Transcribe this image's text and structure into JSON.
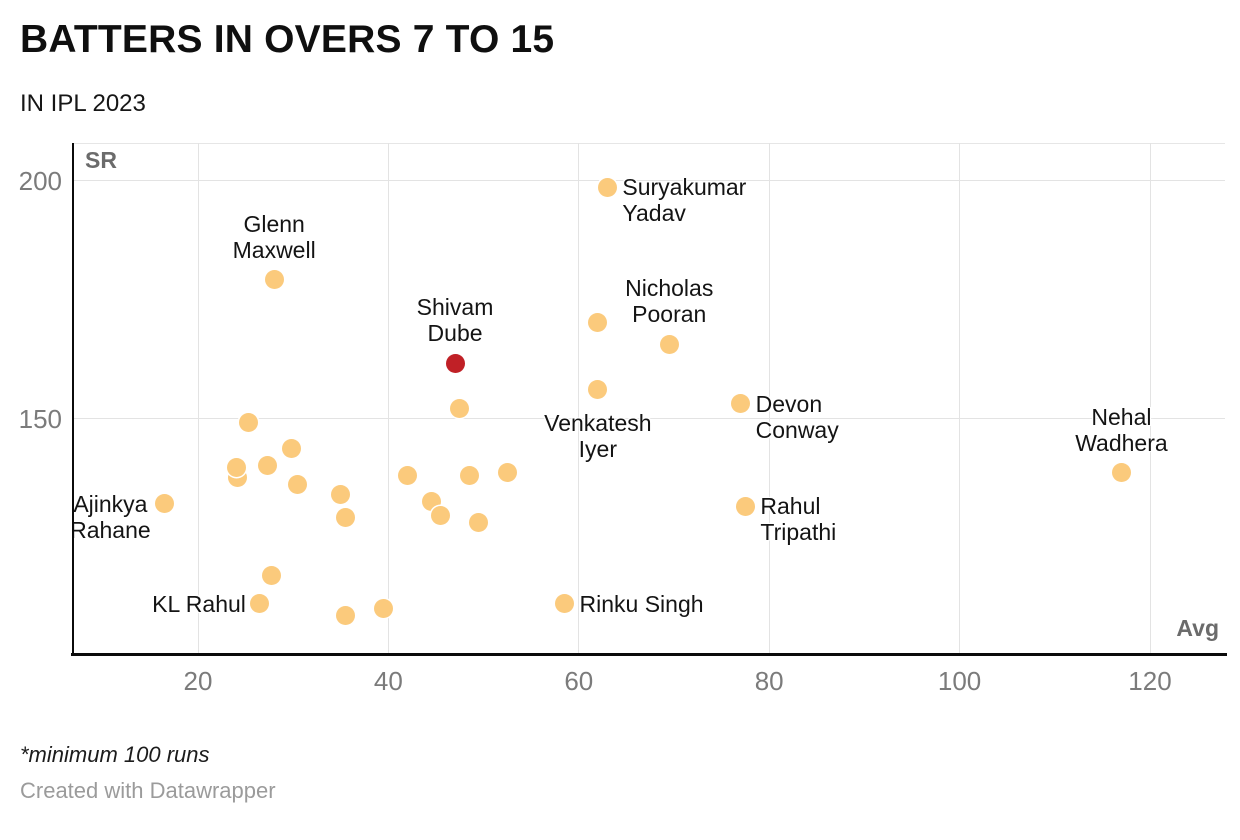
{
  "header": {
    "title": "BATTERS IN OVERS 7 TO 15",
    "subtitle": "IN IPL 2023"
  },
  "footer": {
    "note": "*minimum 100 runs",
    "credit": "Created with Datawrapper"
  },
  "chart_data": {
    "type": "scatter",
    "title": "BATTERS IN OVERS 7 TO 15",
    "subtitle": "IN IPL 2023",
    "x_axis": {
      "label": "Avg",
      "ticks": [
        20,
        40,
        60,
        80,
        100,
        120
      ],
      "range": [
        6.5,
        128
      ]
    },
    "y_axis": {
      "label": "SR",
      "ticks": [
        150,
        200
      ],
      "range": [
        100,
        207.8
      ]
    },
    "grid": true,
    "colors": {
      "default": "#FBCA7C",
      "highlight": "#C02026"
    },
    "points": [
      {
        "name": "Suryakumar Yadav",
        "avg": 63,
        "sr": 198.5,
        "label_lines": [
          "Suryakumar",
          "Yadav"
        ],
        "label_align": "right"
      },
      {
        "name": "Glenn Maxwell",
        "avg": 28,
        "sr": 179,
        "label_lines": [
          "Glenn",
          "Maxwell"
        ],
        "label_align": "above"
      },
      {
        "name": "Shivam Dube",
        "avg": 47,
        "sr": 161.5,
        "highlight": true,
        "label_lines": [
          "Shivam",
          "Dube"
        ],
        "label_align": "above"
      },
      {
        "name": "Nicholas Pooran",
        "avg": 69.5,
        "sr": 165.5,
        "label_lines": [
          "Nicholas",
          "Pooran"
        ],
        "label_align": "above"
      },
      {
        "name": "Venkatesh Iyer",
        "avg": 62,
        "sr": 156,
        "label_lines": [
          "Venkatesh",
          "Iyer"
        ],
        "label_align": "below"
      },
      {
        "name": "Devon Conway",
        "avg": 77,
        "sr": 153,
        "label_lines": [
          "Devon",
          "Conway"
        ],
        "label_align": "right"
      },
      {
        "name": "Rahul Tripathi",
        "avg": 77.5,
        "sr": 131.5,
        "label_lines": [
          "Rahul",
          "Tripathi"
        ],
        "label_align": "right"
      },
      {
        "name": "Nehal Wadhera",
        "avg": 117,
        "sr": 138.5,
        "label_lines": [
          "Nehal",
          "Wadhera"
        ],
        "label_align": "above"
      },
      {
        "name": "Ajinkya Rahane",
        "avg": 16.5,
        "sr": 132,
        "label_lines": [
          "Ajinkya",
          "Rahane"
        ],
        "label_align": "left"
      },
      {
        "name": "KL Rahul",
        "avg": 26.5,
        "sr": 111,
        "label_lines": [
          "KL Rahul"
        ],
        "label_align": "left"
      },
      {
        "name": "Rinku Singh",
        "avg": 58.5,
        "sr": 111,
        "label_lines": [
          "Rinku Singh"
        ],
        "label_align": "right"
      },
      {
        "avg": 62,
        "sr": 170
      },
      {
        "avg": 47.5,
        "sr": 152
      },
      {
        "avg": 25.3,
        "sr": 149
      },
      {
        "avg": 29.8,
        "sr": 143.5
      },
      {
        "avg": 24.2,
        "sr": 137.5
      },
      {
        "avg": 24,
        "sr": 139.5
      },
      {
        "avg": 27.3,
        "sr": 140
      },
      {
        "avg": 30.5,
        "sr": 136
      },
      {
        "avg": 35,
        "sr": 134
      },
      {
        "avg": 35.5,
        "sr": 129
      },
      {
        "avg": 42,
        "sr": 138
      },
      {
        "avg": 44.5,
        "sr": 132.5
      },
      {
        "avg": 45.5,
        "sr": 129.5
      },
      {
        "avg": 48.5,
        "sr": 138
      },
      {
        "avg": 52.5,
        "sr": 138.5
      },
      {
        "avg": 49.5,
        "sr": 128
      },
      {
        "avg": 27.7,
        "sr": 117
      },
      {
        "avg": 35.5,
        "sr": 108.5
      },
      {
        "avg": 39.5,
        "sr": 110
      }
    ]
  }
}
